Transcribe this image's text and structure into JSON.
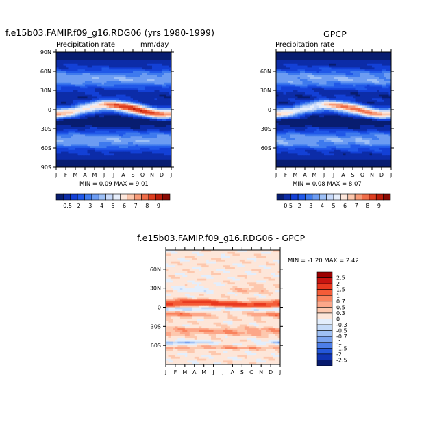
{
  "colors": {
    "seq_levels": [
      "#081d70",
      "#0c2ca8",
      "#1340d6",
      "#2058e8",
      "#3e7aee",
      "#6c9cf2",
      "#9cbff6",
      "#c8dafa",
      "#e6eefb",
      "#fde7dc",
      "#fcc7ad",
      "#f79a77",
      "#ef6d49",
      "#de3e1f",
      "#bc1c0a",
      "#8a0a03"
    ],
    "div_levels": [
      "#9c0000",
      "#c81410",
      "#e8381f",
      "#f45c38",
      "#f9835e",
      "#fca789",
      "#fdc8ae",
      "#fde6d9",
      "#e3eefc",
      "#c4daf8",
      "#9fc0f4",
      "#7aa3ef",
      "#4d7ee8",
      "#2457d9",
      "#1034b3",
      "#071a6e"
    ]
  },
  "panels": [
    {
      "title": "f.e15b03.FAMIP.f09_g16.RDG06 (yrs 1980-1999)",
      "subtitle_left": "Precipitation rate",
      "subtitle_right": "mm/day",
      "stats": "MIN =    0.09  MAX =    9.01",
      "ytick_labels": [
        "90N",
        "60N",
        "30N",
        "0",
        "30S",
        "60S",
        "90S"
      ],
      "xtick_labels": [
        "J",
        "F",
        "M",
        "A",
        "M",
        "J",
        "J",
        "A",
        "S",
        "O",
        "N",
        "D",
        "J"
      ],
      "colorbar_labels": [
        "0.5",
        "2",
        "3",
        "4",
        "5",
        "6",
        "7",
        "8",
        "9"
      ]
    },
    {
      "title": "GPCP",
      "subtitle_left": "Precipitation rate",
      "subtitle_right": "",
      "stats": "MIN =    0.08  MAX =    8.07",
      "ytick_labels": [
        "60N",
        "30N",
        "0",
        "30S",
        "60S"
      ],
      "xtick_labels": [
        "J",
        "F",
        "M",
        "A",
        "M",
        "J",
        "J",
        "A",
        "S",
        "O",
        "N",
        "D",
        "J"
      ],
      "colorbar_labels": [
        "0.5",
        "2",
        "3",
        "4",
        "5",
        "6",
        "7",
        "8",
        "9"
      ]
    },
    {
      "title": "f.e15b03.FAMIP.f09_g16.RDG06 - GPCP",
      "stats": "MIN =   -1.20  MAX =    2.42",
      "ytick_labels": [
        "60N",
        "30N",
        "0",
        "30S",
        "60S"
      ],
      "xtick_labels": [
        "J",
        "F",
        "M",
        "A",
        "M",
        "J",
        "J",
        "A",
        "S",
        "O",
        "N",
        "D",
        "J"
      ],
      "colorbar_labels": [
        "2.5",
        "2",
        "1.5",
        "1",
        "0.7",
        "0.5",
        "0.3",
        "0",
        "-0.3",
        "-0.5",
        "-0.7",
        "-1",
        "-1.5",
        "-2",
        "-2.5"
      ]
    }
  ],
  "chart_data": [
    {
      "type": "heatmap",
      "title": "f.e15b03.FAMIP.f09_g16.RDG06 (yrs 1980-1999)",
      "variable": "Precipitation rate",
      "units": "mm/day",
      "x": [
        "J",
        "F",
        "M",
        "A",
        "M",
        "J",
        "J",
        "A",
        "S",
        "O",
        "N",
        "D",
        "J"
      ],
      "y_range": [
        -90,
        90
      ],
      "y_ticks": [
        "90N",
        "60N",
        "30N",
        "0",
        "30S",
        "60S",
        "90S"
      ],
      "min": 0.09,
      "max": 9.01,
      "levels": [
        0.5,
        2,
        3,
        4,
        5,
        6,
        7,
        8,
        9
      ]
    },
    {
      "type": "heatmap",
      "title": "GPCP",
      "variable": "Precipitation rate",
      "x": [
        "J",
        "F",
        "M",
        "A",
        "M",
        "J",
        "J",
        "A",
        "S",
        "O",
        "N",
        "D",
        "J"
      ],
      "y_range": [
        -90,
        90
      ],
      "y_ticks": [
        "60N",
        "30N",
        "0",
        "30S",
        "60S"
      ],
      "min": 0.08,
      "max": 8.07,
      "levels": [
        0.5,
        2,
        3,
        4,
        5,
        6,
        7,
        8,
        9
      ]
    },
    {
      "type": "heatmap",
      "title": "f.e15b03.FAMIP.f09_g16.RDG06 - GPCP",
      "x": [
        "J",
        "F",
        "M",
        "A",
        "M",
        "J",
        "J",
        "A",
        "S",
        "O",
        "N",
        "D",
        "J"
      ],
      "y_range": [
        -90,
        90
      ],
      "y_ticks": [
        "60N",
        "30N",
        "0",
        "30S",
        "60S"
      ],
      "min": -1.2,
      "max": 2.42,
      "levels": [
        2.5,
        2,
        1.5,
        1,
        0.7,
        0.5,
        0.3,
        0,
        -0.3,
        -0.5,
        -0.7,
        -1,
        -1.5,
        -2,
        -2.5
      ]
    }
  ]
}
